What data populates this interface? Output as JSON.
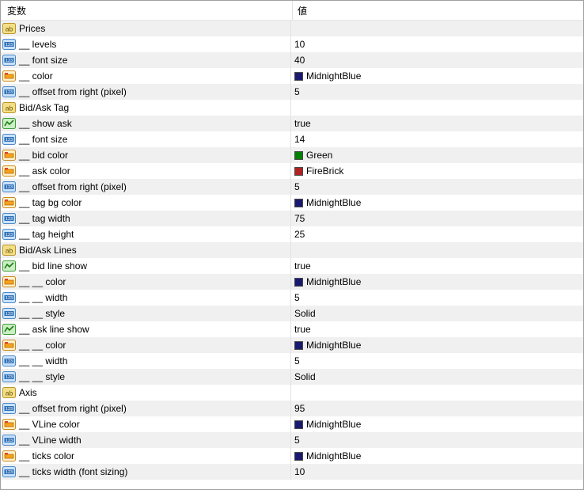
{
  "header": {
    "variable": "変数",
    "value": "値"
  },
  "colors": {
    "MidnightBlue": "#191970",
    "Green": "#008000",
    "FireBrick": "#b22222"
  },
  "rows": [
    {
      "type": "string",
      "name": "Prices",
      "value": ""
    },
    {
      "type": "int",
      "name": "__ levels",
      "value": "10"
    },
    {
      "type": "int",
      "name": "__ font size",
      "value": "40"
    },
    {
      "type": "color",
      "name": "__ color",
      "value": "MidnightBlue"
    },
    {
      "type": "int",
      "name": "__ offset from right (pixel)",
      "value": "5"
    },
    {
      "type": "string",
      "name": "Bid/Ask Tag",
      "value": ""
    },
    {
      "type": "bool",
      "name": "__ show ask",
      "value": "true"
    },
    {
      "type": "int",
      "name": "__ font size",
      "value": "14"
    },
    {
      "type": "color",
      "name": "__ bid color",
      "value": "Green"
    },
    {
      "type": "color",
      "name": "__ ask color",
      "value": "FireBrick"
    },
    {
      "type": "int",
      "name": "__ offset from right (pixel)",
      "value": "5"
    },
    {
      "type": "color",
      "name": "__ tag bg color",
      "value": "MidnightBlue"
    },
    {
      "type": "int",
      "name": "__ tag width",
      "value": "75"
    },
    {
      "type": "int",
      "name": "__ tag height",
      "value": "25"
    },
    {
      "type": "string",
      "name": "Bid/Ask Lines",
      "value": ""
    },
    {
      "type": "bool",
      "name": "__ bid line show",
      "value": "true"
    },
    {
      "type": "color",
      "name": "__ __ color",
      "value": "MidnightBlue"
    },
    {
      "type": "int",
      "name": "__ __ width",
      "value": "5"
    },
    {
      "type": "int",
      "name": "__ __ style",
      "value": "Solid"
    },
    {
      "type": "bool",
      "name": "__ ask line show",
      "value": "true"
    },
    {
      "type": "color",
      "name": "__ __ color",
      "value": "MidnightBlue"
    },
    {
      "type": "int",
      "name": "__ __ width",
      "value": "5"
    },
    {
      "type": "int",
      "name": "__ __ style",
      "value": "Solid"
    },
    {
      "type": "string",
      "name": "Axis",
      "value": ""
    },
    {
      "type": "int",
      "name": "__ offset from right (pixel)",
      "value": "95"
    },
    {
      "type": "color",
      "name": "__ VLine color",
      "value": "MidnightBlue"
    },
    {
      "type": "int",
      "name": "__ VLine width",
      "value": "5"
    },
    {
      "type": "color",
      "name": "__ ticks color",
      "value": "MidnightBlue"
    },
    {
      "type": "int",
      "name": "__ ticks width (font sizing)",
      "value": "10"
    }
  ]
}
